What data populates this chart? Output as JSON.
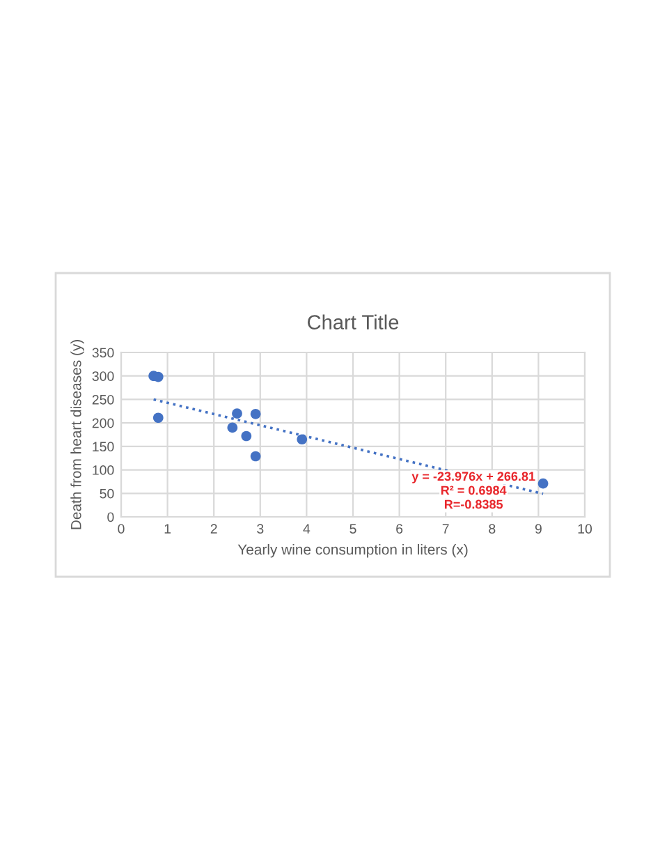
{
  "chart_data": {
    "type": "scatter",
    "title": "Chart Title",
    "xlabel": "Yearly wine consumption in liters (x)",
    "ylabel": "Death from heart diseases (y)",
    "series": [
      {
        "color": "#4472c4",
        "marker": "circle",
        "x": [
          0.7,
          0.8,
          0.8,
          2.4,
          2.5,
          2.9,
          2.7,
          2.9,
          3.9,
          9.1
        ],
        "values": [
          300,
          298,
          211,
          190,
          220,
          219,
          172,
          129,
          165,
          71
        ]
      },
      {
        "type": "line",
        "color": "#4472c4",
        "line_style": "dotted",
        "marker": "none",
        "x": [
          0.7,
          9.1
        ],
        "values": [
          250,
          49
        ]
      }
    ],
    "annotations": [
      "y = -23.976x + 266.81",
      "R² = 0.6984",
      "R=-0.8385"
    ],
    "xlim": [
      0,
      10
    ],
    "xticks": [
      0,
      1,
      2,
      3,
      4,
      5,
      6,
      7,
      8,
      9,
      10
    ],
    "ylim": [
      0,
      350
    ],
    "yticks": [
      0,
      50,
      100,
      150,
      200,
      250,
      300,
      350
    ],
    "grid": true
  }
}
